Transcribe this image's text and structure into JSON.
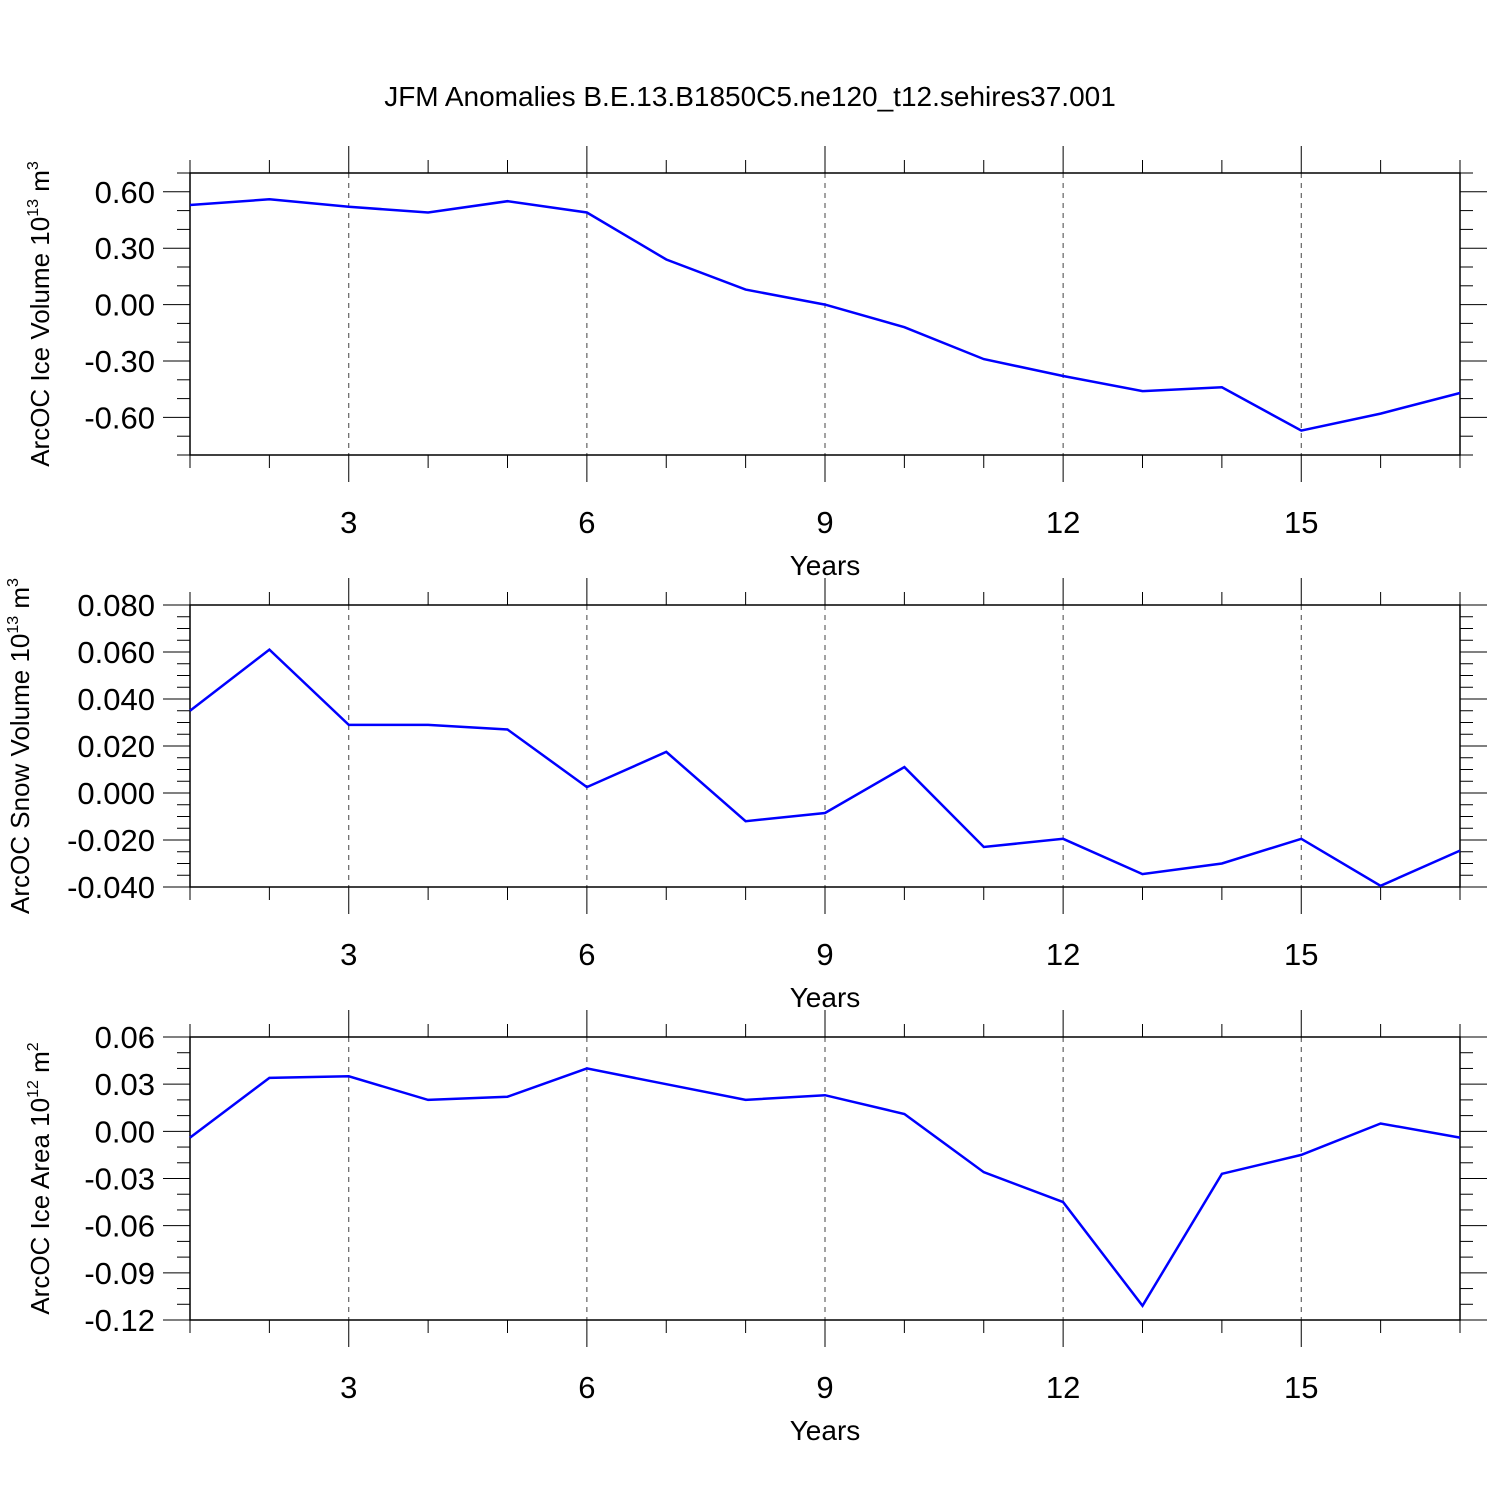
{
  "chart_data": [
    {
      "type": "line",
      "title": "JFM Anomalies B.E.13.B1850C5.ne120_t12.sehires37.001",
      "xlabel": "Years",
      "ylabel": {
        "text": "ArcOC Ice Volume 10",
        "exp": "13",
        "unit": " m",
        "unit_exp": "3"
      },
      "xlim": [
        1,
        17
      ],
      "ylim": [
        -0.8,
        0.7
      ],
      "xticks": [
        3,
        6,
        9,
        12,
        15
      ],
      "xtick_labels": [
        "3",
        "6",
        "9",
        "12",
        "15"
      ],
      "yticks": [
        -0.6,
        -0.3,
        0.0,
        0.3,
        0.6
      ],
      "ytick_labels": [
        "-0.60",
        "-0.30",
        "0.00",
        "0.30",
        "0.60"
      ],
      "yminor_step": 0.1,
      "color": "#0000ff",
      "grid": "vertical dashed",
      "series": [
        {
          "name": "ArcOC Ice Volume",
          "x": [
            1,
            2,
            3,
            4,
            5,
            6,
            7,
            8,
            9,
            10,
            11,
            12,
            13,
            14,
            15,
            16,
            17
          ],
          "values": [
            0.53,
            0.56,
            0.52,
            0.49,
            0.55,
            0.49,
            0.24,
            0.08,
            0.0,
            -0.12,
            -0.29,
            -0.38,
            -0.46,
            -0.44,
            -0.67,
            -0.58,
            -0.47
          ]
        }
      ]
    },
    {
      "type": "line",
      "xlabel": "Years",
      "ylabel": {
        "text": "ArcOC Snow Volume 10",
        "exp": "13",
        "unit": " m",
        "unit_exp": "3"
      },
      "xlim": [
        1,
        17
      ],
      "ylim": [
        -0.04,
        0.08
      ],
      "xticks": [
        3,
        6,
        9,
        12,
        15
      ],
      "xtick_labels": [
        "3",
        "6",
        "9",
        "12",
        "15"
      ],
      "yticks": [
        -0.04,
        -0.02,
        0.0,
        0.02,
        0.04,
        0.06,
        0.08
      ],
      "ytick_labels": [
        "-0.040",
        "-0.020",
        "0.000",
        "0.020",
        "0.040",
        "0.060",
        "0.080"
      ],
      "yminor_step": 0.005,
      "color": "#0000ff",
      "grid": "vertical dashed",
      "series": [
        {
          "name": "ArcOC Snow Volume",
          "x": [
            1,
            2,
            3,
            4,
            5,
            6,
            7,
            8,
            9,
            10,
            11,
            12,
            13,
            14,
            15,
            16,
            17
          ],
          "values": [
            0.035,
            0.061,
            0.029,
            0.029,
            0.027,
            0.0025,
            0.0175,
            -0.012,
            -0.0085,
            0.011,
            -0.023,
            -0.0195,
            -0.0345,
            -0.03,
            -0.0195,
            -0.0395,
            -0.0245
          ]
        }
      ]
    },
    {
      "type": "line",
      "xlabel": "Years",
      "ylabel": {
        "text": "ArcOC Ice Area 10",
        "exp": "12",
        "unit": " m",
        "unit_exp": "2"
      },
      "xlim": [
        1,
        17
      ],
      "ylim": [
        -0.12,
        0.06
      ],
      "xticks": [
        3,
        6,
        9,
        12,
        15
      ],
      "xtick_labels": [
        "3",
        "6",
        "9",
        "12",
        "15"
      ],
      "yticks": [
        -0.12,
        -0.09,
        -0.06,
        -0.03,
        0.0,
        0.03,
        0.06
      ],
      "ytick_labels": [
        "-0.12",
        "-0.09",
        "-0.06",
        "-0.03",
        "0.00",
        "0.03",
        "0.06"
      ],
      "yminor_step": 0.01,
      "color": "#0000ff",
      "grid": "vertical dashed",
      "series": [
        {
          "name": "ArcOC Ice Area",
          "x": [
            1,
            2,
            3,
            4,
            5,
            6,
            7,
            8,
            9,
            10,
            11,
            12,
            13,
            14,
            15,
            16,
            17
          ],
          "values": [
            -0.004,
            0.034,
            0.035,
            0.02,
            0.022,
            0.04,
            0.03,
            0.02,
            0.023,
            0.011,
            -0.026,
            -0.045,
            -0.111,
            -0.027,
            -0.015,
            0.005,
            -0.004
          ]
        }
      ]
    }
  ]
}
